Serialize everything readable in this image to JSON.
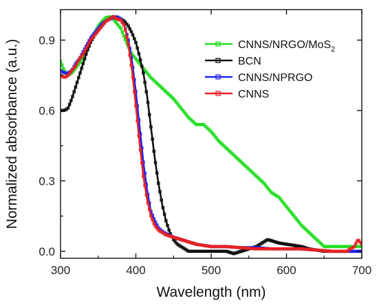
{
  "chart_data": {
    "type": "line",
    "xlabel": "Wavelength (nm)",
    "ylabel": "Normalized absorbance (a.u.)",
    "xlim": [
      300,
      700
    ],
    "ylim": [
      -0.03,
      1.03
    ],
    "xticks": [
      300,
      400,
      500,
      600,
      700
    ],
    "yticks": [
      0.0,
      0.3,
      0.6,
      0.9
    ],
    "xtick_labels": [
      "300",
      "400",
      "500",
      "600",
      "700"
    ],
    "ytick_labels": [
      "0.0",
      "0.3",
      "0.6",
      "0.9"
    ],
    "grid": false,
    "legend_position": "top-right",
    "series": [
      {
        "name": "CNNS/NRGO/MoS2",
        "legend_label": {
          "main": "CNNS/NRGO/MoS",
          "sub": "2"
        },
        "color": "#22dd22",
        "x": [
          300,
          305,
          310,
          315,
          320,
          325,
          330,
          335,
          340,
          345,
          350,
          355,
          360,
          365,
          370,
          375,
          380,
          385,
          390,
          395,
          400,
          405,
          410,
          420,
          430,
          440,
          450,
          460,
          470,
          480,
          490,
          500,
          510,
          520,
          530,
          540,
          550,
          560,
          570,
          580,
          590,
          600,
          610,
          620,
          630,
          640,
          650,
          660,
          670,
          680,
          690,
          700
        ],
        "y": [
          0.81,
          0.77,
          0.75,
          0.76,
          0.78,
          0.8,
          0.83,
          0.86,
          0.9,
          0.93,
          0.96,
          0.98,
          0.995,
          1.0,
          0.99,
          0.97,
          0.95,
          0.91,
          0.87,
          0.84,
          0.82,
          0.8,
          0.78,
          0.74,
          0.71,
          0.68,
          0.65,
          0.61,
          0.57,
          0.54,
          0.54,
          0.51,
          0.47,
          0.44,
          0.41,
          0.38,
          0.35,
          0.32,
          0.29,
          0.25,
          0.23,
          0.19,
          0.15,
          0.11,
          0.08,
          0.05,
          0.02,
          0.02,
          0.02,
          0.02,
          0.02,
          0.02
        ]
      },
      {
        "name": "BCN",
        "legend_label": {
          "main": "BCN",
          "sub": ""
        },
        "color": "#111111",
        "x": [
          300,
          305,
          310,
          315,
          320,
          325,
          330,
          335,
          340,
          345,
          350,
          355,
          360,
          365,
          370,
          375,
          380,
          385,
          390,
          395,
          400,
          405,
          410,
          415,
          420,
          425,
          430,
          435,
          440,
          445,
          450,
          455,
          460,
          465,
          470,
          480,
          490,
          500,
          510,
          520,
          530,
          540,
          550,
          560,
          570,
          575,
          580,
          590,
          600,
          610,
          620,
          630,
          640,
          650,
          660,
          670,
          680,
          690,
          700
        ],
        "y": [
          0.6,
          0.6,
          0.61,
          0.65,
          0.7,
          0.75,
          0.8,
          0.85,
          0.89,
          0.92,
          0.94,
          0.96,
          0.98,
          0.99,
          1.0,
          0.995,
          0.99,
          0.98,
          0.96,
          0.93,
          0.89,
          0.83,
          0.76,
          0.66,
          0.53,
          0.4,
          0.29,
          0.2,
          0.13,
          0.08,
          0.05,
          0.03,
          0.02,
          0.01,
          0.0,
          0.0,
          0.0,
          0.0,
          0.0,
          0.0,
          -0.01,
          0.0,
          0.01,
          0.02,
          0.04,
          0.05,
          0.045,
          0.035,
          0.03,
          0.025,
          0.02,
          0.01,
          0.005,
          0.0,
          0.0,
          0.0,
          0.0,
          0.0,
          0.0
        ]
      },
      {
        "name": "CNNS/NPRGO",
        "legend_label": {
          "main": "CNNS/NPRGO",
          "sub": ""
        },
        "color": "#2222ee",
        "x": [
          300,
          305,
          310,
          315,
          320,
          325,
          330,
          335,
          340,
          345,
          350,
          355,
          360,
          365,
          370,
          375,
          380,
          385,
          390,
          395,
          400,
          405,
          410,
          415,
          420,
          425,
          430,
          435,
          440,
          450,
          460,
          470,
          480,
          490,
          500,
          520,
          540,
          560,
          580,
          600,
          620,
          640,
          660,
          680,
          700
        ],
        "y": [
          0.77,
          0.76,
          0.76,
          0.77,
          0.8,
          0.82,
          0.85,
          0.88,
          0.91,
          0.93,
          0.95,
          0.97,
          0.98,
          0.99,
          0.995,
          1.0,
          0.99,
          0.96,
          0.9,
          0.81,
          0.68,
          0.53,
          0.38,
          0.26,
          0.17,
          0.13,
          0.1,
          0.085,
          0.075,
          0.06,
          0.05,
          0.04,
          0.03,
          0.025,
          0.02,
          0.02,
          0.015,
          0.015,
          0.01,
          0.01,
          0.01,
          0.005,
          0.0,
          0.0,
          0.0
        ]
      },
      {
        "name": "CNNS",
        "legend_label": {
          "main": "CNNS",
          "sub": ""
        },
        "color": "#e62222",
        "x": [
          300,
          305,
          310,
          315,
          320,
          325,
          330,
          335,
          340,
          345,
          350,
          355,
          360,
          365,
          370,
          375,
          380,
          385,
          390,
          395,
          400,
          405,
          410,
          415,
          420,
          425,
          430,
          440,
          450,
          460,
          470,
          480,
          490,
          500,
          520,
          540,
          560,
          580,
          600,
          620,
          640,
          660,
          680,
          690,
          695,
          700
        ],
        "y": [
          0.75,
          0.74,
          0.75,
          0.77,
          0.79,
          0.82,
          0.84,
          0.87,
          0.9,
          0.92,
          0.94,
          0.96,
          0.98,
          0.99,
          1.0,
          0.99,
          0.985,
          0.96,
          0.88,
          0.77,
          0.62,
          0.46,
          0.32,
          0.22,
          0.15,
          0.11,
          0.09,
          0.07,
          0.06,
          0.05,
          0.04,
          0.03,
          0.025,
          0.02,
          0.02,
          0.015,
          0.01,
          0.01,
          0.01,
          0.01,
          0.005,
          0.0,
          0.0,
          0.02,
          0.05,
          0.03
        ]
      }
    ]
  }
}
